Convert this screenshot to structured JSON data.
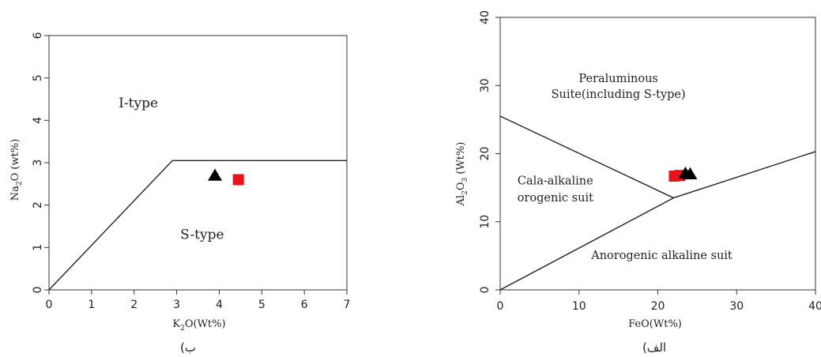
{
  "chart_data": [
    {
      "type": "scatter",
      "title": "",
      "panel_caption": "ب)",
      "xlabel": "K2O(Wt%)",
      "ylabel": "Na2O (wt%)",
      "xlim": [
        0,
        7
      ],
      "ylim": [
        0,
        6
      ],
      "xticks": [
        0,
        1,
        2,
        3,
        4,
        5,
        6,
        7
      ],
      "yticks": [
        0,
        1,
        2,
        3,
        4,
        5,
        6
      ],
      "grid": false,
      "boundary_lines": [
        [
          [
            0,
            0
          ],
          [
            2.9,
            3.05
          ],
          [
            7,
            3.05
          ]
        ]
      ],
      "regions": [
        {
          "label": "I-type",
          "x": 2.1,
          "y": 4.3
        },
        {
          "label": "S-type",
          "x": 3.6,
          "y": 1.2
        }
      ],
      "points": [
        {
          "x": 3.9,
          "y": 2.7,
          "marker": "triangle",
          "color": "#000000"
        },
        {
          "x": 4.45,
          "y": 2.6,
          "marker": "square",
          "color": "#e8141c"
        }
      ]
    },
    {
      "type": "scatter",
      "title": "",
      "panel_caption": "الف)",
      "xlabel": "FeO(Wt%)",
      "ylabel": "Al2O3 (Wt%)",
      "xlim": [
        0,
        40
      ],
      "ylim": [
        0,
        40
      ],
      "xticks": [
        0,
        10,
        20,
        30,
        40
      ],
      "yticks": [
        0,
        10,
        20,
        30,
        40
      ],
      "grid": false,
      "boundary_lines": [
        [
          [
            0,
            25.5
          ],
          [
            22,
            13.5
          ]
        ],
        [
          [
            0,
            0
          ],
          [
            22,
            13.5
          ],
          [
            40,
            20.3
          ]
        ]
      ],
      "regions": [
        {
          "label": "Peraluminous",
          "x": 15,
          "y": 30.5
        },
        {
          "label": "Suite(including S-type)",
          "x": 15,
          "y": 28.2
        },
        {
          "label": "Cala-alkaline",
          "x": 7,
          "y": 15.5
        },
        {
          "label": "orogenic suit",
          "x": 7,
          "y": 13
        },
        {
          "label": "Anorogenic alkaline suit",
          "x": 20.5,
          "y": 4.5
        }
      ],
      "points": [
        {
          "x": 22.1,
          "y": 16.7,
          "marker": "square",
          "color": "#e8141c"
        },
        {
          "x": 22.8,
          "y": 16.8,
          "marker": "square",
          "color": "#e8141c"
        },
        {
          "x": 23.5,
          "y": 17.1,
          "marker": "triangle",
          "color": "#000000"
        },
        {
          "x": 24.1,
          "y": 17.0,
          "marker": "triangle",
          "color": "#000000"
        }
      ]
    }
  ]
}
